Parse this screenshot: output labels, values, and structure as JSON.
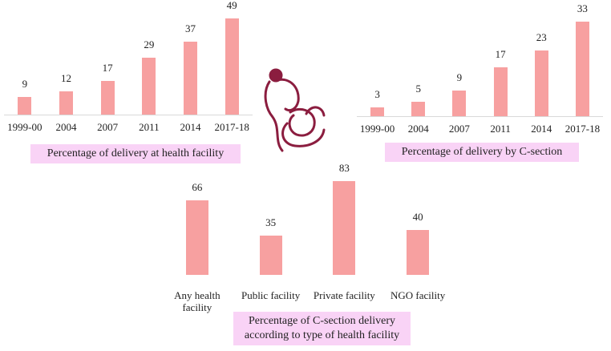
{
  "chart_data": [
    {
      "type": "bar",
      "title": "Percentage of delivery at health facility",
      "categories": [
        "1999-00",
        "2004",
        "2007",
        "2011",
        "2014",
        "2017-18"
      ],
      "values": [
        9,
        12,
        17,
        29,
        37,
        49
      ],
      "color": "#f7a0a0"
    },
    {
      "type": "bar",
      "title": "Percentage of delivery by C-section",
      "categories": [
        "1999-00",
        "2004",
        "2007",
        "2011",
        "2014",
        "2017-18"
      ],
      "values": [
        3,
        5,
        9,
        17,
        23,
        33
      ],
      "color": "#f7a0a0"
    },
    {
      "type": "bar",
      "title": "Percentage of C-section delivery according to type of health facility",
      "categories": [
        "Any health facility",
        "Public facility",
        "Private facility",
        "NGO facility"
      ],
      "values": [
        66,
        35,
        83,
        40
      ],
      "color": "#f7a0a0"
    }
  ]
}
